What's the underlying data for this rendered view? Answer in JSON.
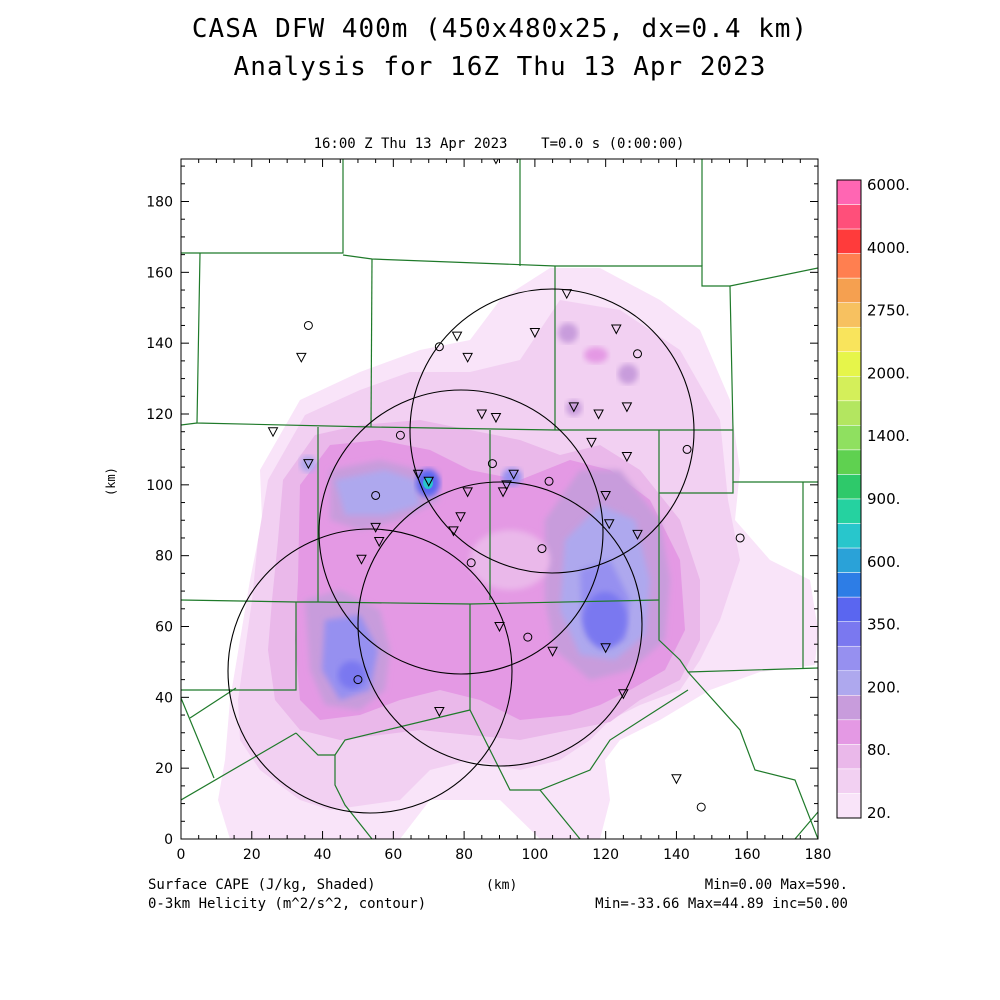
{
  "title": {
    "line1": "CASA DFW 400m (450x480x25, dx=0.4 km)",
    "line2": "Analysis for 16Z Thu 13 Apr 2023",
    "subtitle": "16:00 Z Thu 13 Apr 2023    T=0.0 s (0:00:00)"
  },
  "axes": {
    "x_label": "(km)",
    "y_label": "(km)",
    "x_range": [
      0,
      180
    ],
    "y_range": [
      0,
      192
    ],
    "x_ticks": [
      "0",
      "20",
      "40",
      "60",
      "80",
      "100",
      "120",
      "140",
      "160",
      "180"
    ],
    "y_ticks": [
      "0",
      "20",
      "40",
      "60",
      "80",
      "100",
      "120",
      "140",
      "160",
      "180"
    ]
  },
  "colorbar": {
    "labels": [
      "6000.",
      "4000.",
      "2750.",
      "2000.",
      "1400.",
      "900.",
      "600.",
      "350.",
      "200.",
      "80.",
      "20."
    ],
    "colors": [
      "#ff66b3",
      "#ff4f7a",
      "#ff3b3b",
      "#ff7f50",
      "#f5a050",
      "#f7c160",
      "#f9e45c",
      "#e6f54a",
      "#d4ef5a",
      "#b3e660",
      "#8fe060",
      "#5fd150",
      "#2ec96a",
      "#25d2a0",
      "#28c6cc",
      "#2aa2d8",
      "#2d7de6",
      "#5a66f0",
      "#7a78f0",
      "#9690f0",
      "#aea8ee",
      "#c89cdc",
      "#e499e4",
      "#eab8ea",
      "#f2d0f2",
      "#f9e4f9"
    ]
  },
  "legend": {
    "shaded": "Surface CAPE (J/kg, Shaded)",
    "contour": "0-3km Helicity (m^2/s^2, contour)",
    "shaded_stats": "Min=0.00 Max=590.",
    "contour_stats": "Min=-33.66 Max=44.89 inc=50.00"
  },
  "chart_data": {
    "type": "heatmap",
    "field": "Surface CAPE (J/kg)",
    "min": 0.0,
    "max": 590.0,
    "radar_coverage_circles_km": [
      {
        "center": [
          49,
          48
        ],
        "radius": 40
      },
      {
        "center": [
          79,
          90
        ],
        "radius": 37
      },
      {
        "center": [
          104,
          117
        ],
        "radius": 40
      },
      {
        "center": [
          91,
          58
        ],
        "radius": 43
      }
    ],
    "stations_triangle_km": [
      [
        89,
        192
      ],
      [
        109,
        154
      ],
      [
        123,
        144
      ],
      [
        100,
        143
      ],
      [
        78,
        142
      ],
      [
        81,
        136
      ],
      [
        34,
        136
      ],
      [
        126,
        122
      ],
      [
        111,
        122
      ],
      [
        85,
        120
      ],
      [
        89,
        119
      ],
      [
        118,
        120
      ],
      [
        26,
        115
      ],
      [
        116,
        112
      ],
      [
        126,
        108
      ],
      [
        36,
        106
      ],
      [
        67,
        103
      ],
      [
        70,
        101
      ],
      [
        94,
        103
      ],
      [
        92,
        100
      ],
      [
        81,
        98
      ],
      [
        120,
        97
      ],
      [
        91,
        98
      ],
      [
        55,
        88
      ],
      [
        79,
        91
      ],
      [
        77,
        87
      ],
      [
        129,
        86
      ],
      [
        121,
        89
      ],
      [
        56,
        84
      ],
      [
        51,
        79
      ],
      [
        90,
        60
      ],
      [
        120,
        54
      ],
      [
        105,
        53
      ],
      [
        125,
        41
      ],
      [
        73,
        36
      ],
      [
        140,
        17
      ]
    ],
    "stations_circle_km": [
      [
        36,
        145
      ],
      [
        73,
        139
      ],
      [
        62,
        114
      ],
      [
        88,
        106
      ],
      [
        55,
        97
      ],
      [
        104,
        101
      ],
      [
        102,
        82
      ],
      [
        82,
        78
      ],
      [
        98,
        57
      ],
      [
        50,
        45
      ],
      [
        158,
        85
      ],
      [
        143,
        110
      ],
      [
        129,
        137
      ],
      [
        147,
        9
      ]
    ]
  }
}
